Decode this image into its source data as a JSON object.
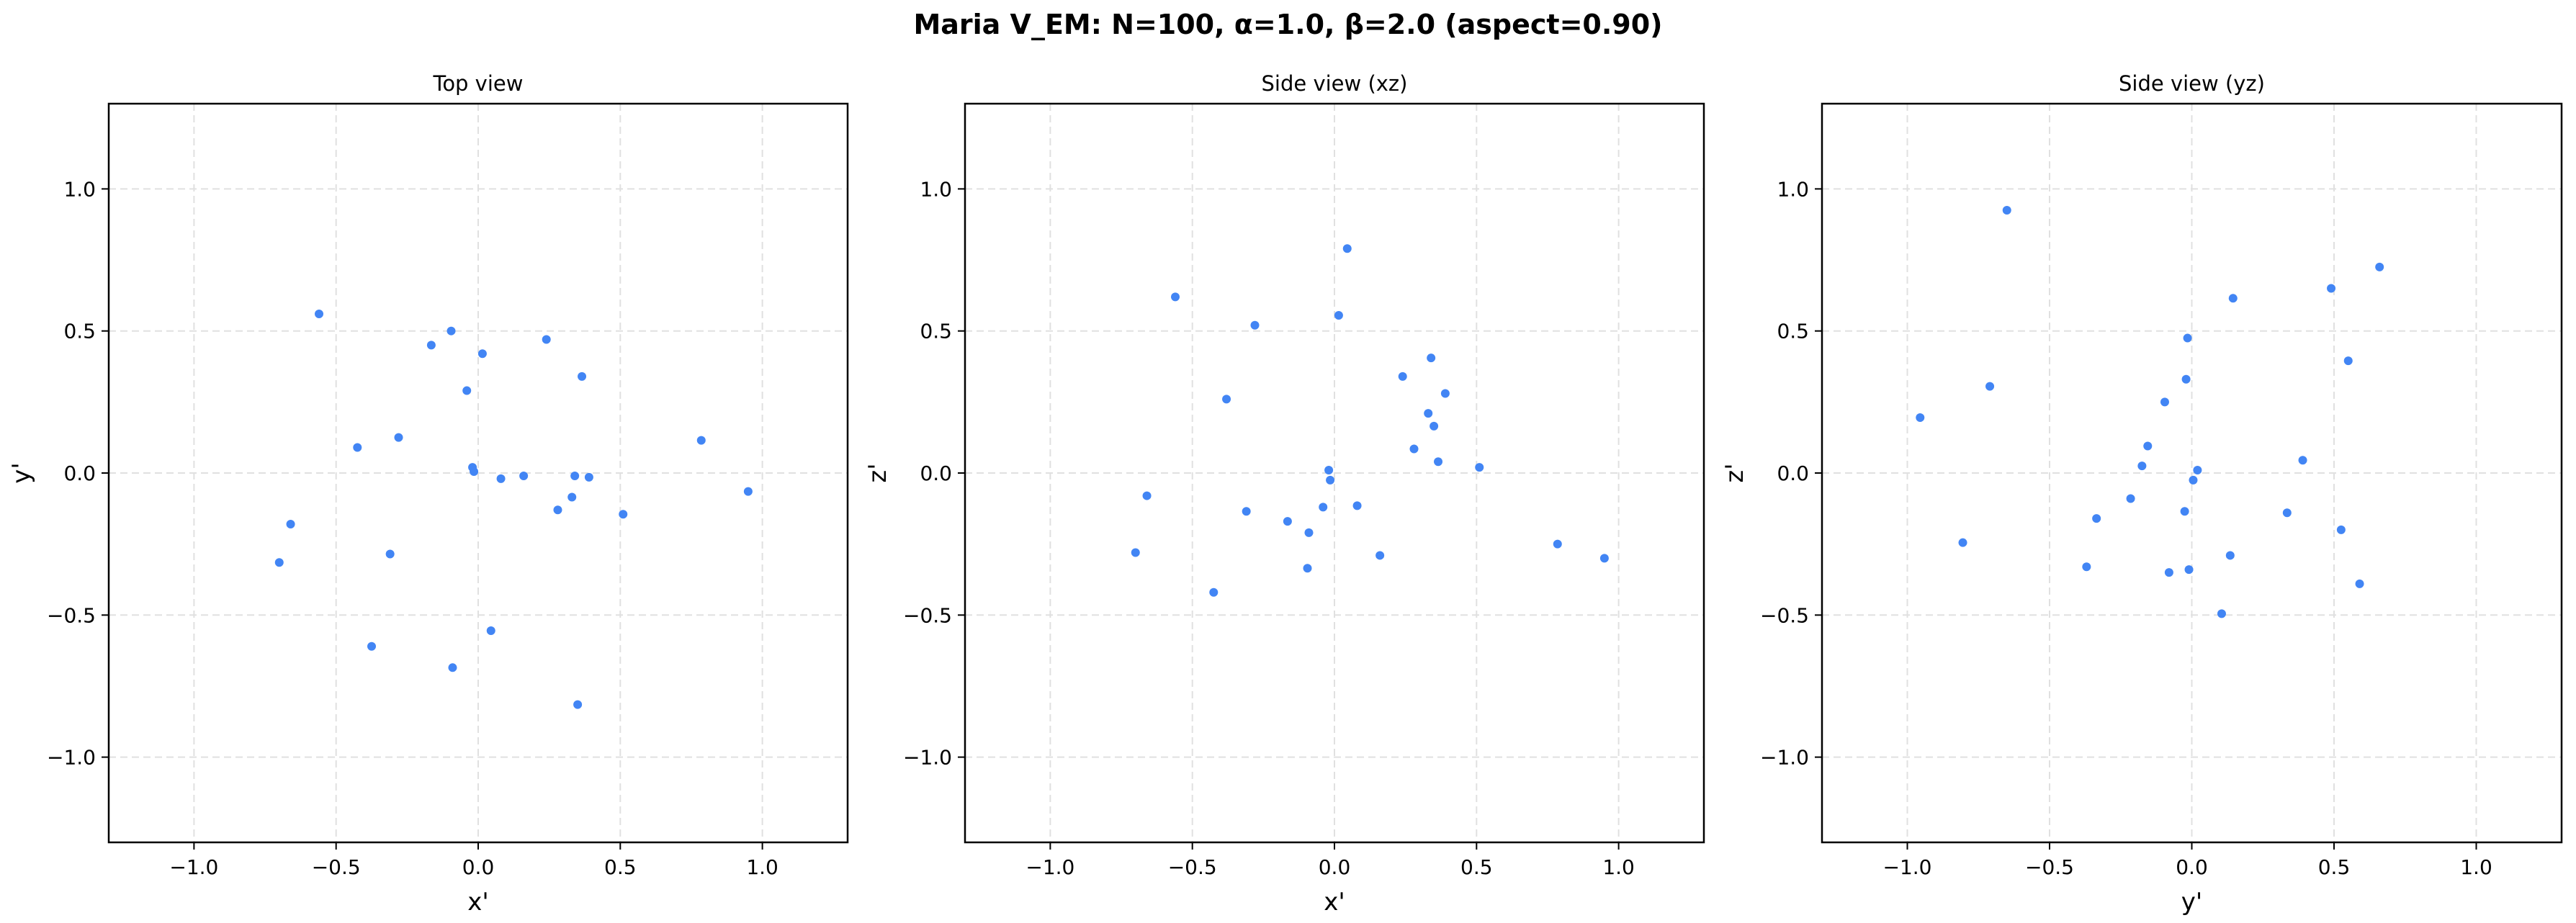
{
  "figure": {
    "suptitle": "Maria V_EM: N=100, α=1.0, β=2.0  (aspect=0.90)",
    "point_color": "#4285f4",
    "grid_color": "#e0e0e0"
  },
  "panels": [
    {
      "title": "Top view",
      "xlabel": "x'",
      "ylabel": "y'"
    },
    {
      "title": "Side view (xz)",
      "xlabel": "x'",
      "ylabel": "z'"
    },
    {
      "title": "Side view (yz)",
      "xlabel": "y'",
      "ylabel": "z'"
    }
  ],
  "chart_data": [
    {
      "type": "scatter",
      "title": "Top view",
      "xlabel": "x'",
      "ylabel": "y'",
      "xlim": [
        -1.3,
        1.3
      ],
      "ylim": [
        -1.3,
        1.3
      ],
      "xticks": [
        "−1.0",
        "−0.5",
        "0.0",
        "0.5",
        "1.0"
      ],
      "yticks": [
        "−1.0",
        "−0.5",
        "0.0",
        "0.5",
        "1.0"
      ],
      "grid": true,
      "x": [
        -0.56,
        -0.095,
        -0.165,
        0.015,
        0.24,
        0.365,
        -0.04,
        -0.28,
        -0.425,
        0.785,
        -0.02,
        -0.015,
        0.08,
        0.16,
        0.34,
        0.39,
        0.33,
        0.28,
        0.51,
        0.95,
        -0.66,
        -0.7,
        -0.31,
        -0.375,
        0.045,
        -0.09,
        0.35
      ],
      "y": [
        0.56,
        0.5,
        0.45,
        0.42,
        0.47,
        0.34,
        0.29,
        0.125,
        0.09,
        0.115,
        0.02,
        0.005,
        -0.02,
        -0.01,
        -0.01,
        -0.015,
        -0.085,
        -0.13,
        -0.145,
        -0.065,
        -0.18,
        -0.315,
        -0.285,
        -0.61,
        -0.555,
        -0.685,
        -0.815
      ]
    },
    {
      "type": "scatter",
      "title": "Side view (xz)",
      "xlabel": "x'",
      "ylabel": "z'",
      "xlim": [
        -1.3,
        1.3
      ],
      "ylim": [
        -1.3,
        1.3
      ],
      "xticks": [
        "−1.0",
        "−0.5",
        "0.0",
        "0.5",
        "1.0"
      ],
      "yticks": [
        "−1.0",
        "−0.5",
        "0.0",
        "0.5",
        "1.0"
      ],
      "grid": true,
      "x": [
        0.045,
        -0.56,
        0.015,
        -0.28,
        0.34,
        0.24,
        0.39,
        -0.38,
        0.33,
        0.35,
        0.28,
        0.365,
        0.51,
        -0.02,
        -0.015,
        -0.66,
        0.08,
        -0.04,
        -0.31,
        -0.165,
        -0.09,
        -0.7,
        0.16,
        -0.095,
        -0.425,
        0.785,
        0.95
      ],
      "y": [
        0.79,
        0.62,
        0.555,
        0.52,
        0.405,
        0.34,
        0.28,
        0.26,
        0.21,
        0.165,
        0.085,
        0.04,
        0.02,
        0.01,
        -0.025,
        -0.08,
        -0.115,
        -0.12,
        -0.135,
        -0.17,
        -0.21,
        -0.28,
        -0.29,
        -0.335,
        -0.42,
        -0.25,
        -0.3
      ]
    },
    {
      "type": "scatter",
      "title": "Side view (yz)",
      "xlabel": "y'",
      "ylabel": "z'",
      "xlim": [
        -1.3,
        1.3
      ],
      "ylim": [
        -1.3,
        1.3
      ],
      "xticks": [
        "−1.0",
        "−0.5",
        "0.0",
        "0.5",
        "1.0"
      ],
      "yticks": [
        "−1.0",
        "−0.5",
        "0.0",
        "0.5",
        "1.0"
      ],
      "grid": true,
      "x": [
        -0.65,
        0.66,
        0.49,
        0.145,
        -0.015,
        0.55,
        -0.02,
        -0.71,
        -0.095,
        -0.955,
        -0.155,
        -0.175,
        0.02,
        0.39,
        0.005,
        -0.215,
        -0.025,
        -0.335,
        0.335,
        0.525,
        -0.805,
        0.135,
        -0.37,
        -0.08,
        -0.01,
        0.59,
        0.105
      ],
      "y": [
        0.925,
        0.725,
        0.65,
        0.615,
        0.475,
        0.395,
        0.33,
        0.305,
        0.25,
        0.195,
        0.095,
        0.025,
        0.01,
        0.045,
        -0.025,
        -0.09,
        -0.135,
        -0.16,
        -0.14,
        -0.2,
        -0.245,
        -0.29,
        -0.33,
        -0.35,
        -0.34,
        -0.39,
        -0.495
      ]
    }
  ]
}
